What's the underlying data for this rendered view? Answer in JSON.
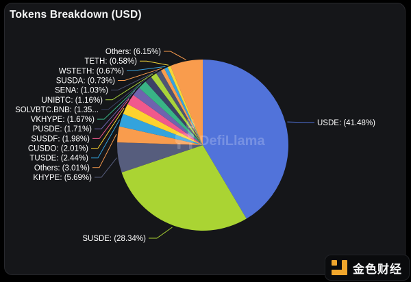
{
  "watermark": {
    "text": "DefiLlama",
    "icon": "llama-icon"
  },
  "footer_logo": {
    "text": "金色财经",
    "icon": "jinse-gold-square-icon"
  },
  "colors": {
    "background": "#000000",
    "card": "#151619",
    "card_border": "#28292d",
    "title_text": "#f4f5f6",
    "label_text": "#ffffff",
    "logo_gold": "#f0a62c",
    "watermark_text": "rgba(255,255,255,0.22)"
  },
  "chart_data": {
    "type": "pie",
    "title": "Tokens Breakdown (USD)",
    "value_unit": "percent",
    "legend_position": "none",
    "label_style": "outside-with-leader-lines",
    "start_angle_deg": 90,
    "direction": "clockwise",
    "series": [
      {
        "name": "USDE",
        "value": 41.48,
        "label": "USDE: (41.48%)",
        "color": "#5173da"
      },
      {
        "name": "SUSDE",
        "value": 28.34,
        "label": "SUSDE: (28.34%)",
        "color": "#aad433"
      },
      {
        "name": "KHYPE",
        "value": 5.69,
        "label": "KHYPE: (5.69%)",
        "color": "#565d7d"
      },
      {
        "name": "Others",
        "value": 3.01,
        "label": "Others: (3.01%)",
        "color": "#f99c4d"
      },
      {
        "name": "TUSDE",
        "value": 2.44,
        "label": "TUSDE: (2.44%)",
        "color": "#33a3dd"
      },
      {
        "name": "CUSDO",
        "value": 2.01,
        "label": "CUSDO: (2.01%)",
        "color": "#fdd22f"
      },
      {
        "name": "SUSDF",
        "value": 1.98,
        "label": "SUSDF: (1.98%)",
        "color": "#f1598c"
      },
      {
        "name": "PUSDE",
        "value": 1.71,
        "label": "PUSDE: (1.71%)",
        "color": "#6f63ae"
      },
      {
        "name": "VKHYPE",
        "value": 1.67,
        "label": "VKHYPE: (1.67%)",
        "color": "#39b486"
      },
      {
        "name": "SOLVBTC.BNB",
        "value": 1.35,
        "label": "SOLVBTC.BNB: (1.35...",
        "color": "#3b4266"
      },
      {
        "name": "UNIBTC",
        "value": 1.16,
        "label": "UNIBTC: (1.16%)",
        "color": "#a9d53b"
      },
      {
        "name": "SENA",
        "value": 1.03,
        "label": "SENA: (1.03%)",
        "color": "#4e5574"
      },
      {
        "name": "SUSDA",
        "value": 0.73,
        "label": "SUSDA: (0.73%)",
        "color": "#f99c4d"
      },
      {
        "name": "WSTETH",
        "value": 0.67,
        "label": "WSTETH: (0.67%)",
        "color": "#38a3de"
      },
      {
        "name": "TETH",
        "value": 0.58,
        "label": "TETH: (0.58%)",
        "color": "#f3d73a"
      },
      {
        "name": "Others ",
        "value": 6.15,
        "label": "Others: (6.15%)",
        "color": "#f99c4d"
      }
    ]
  }
}
